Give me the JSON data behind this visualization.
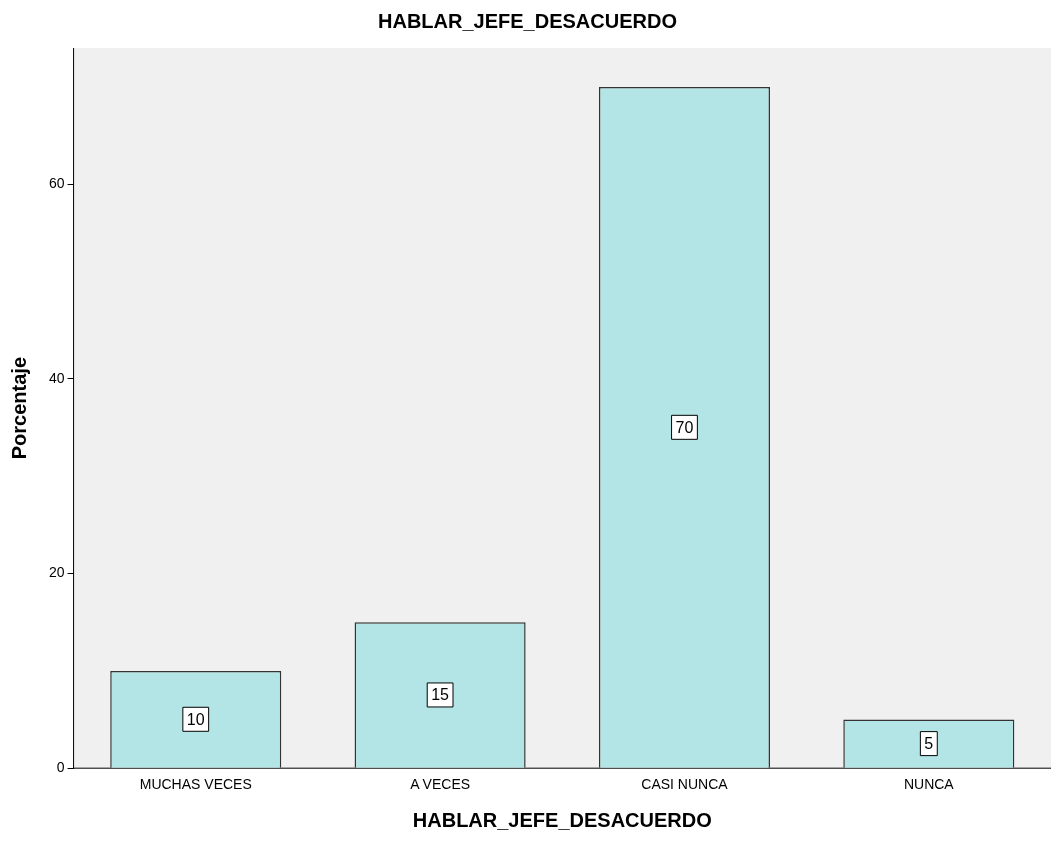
{
  "chart_data": {
    "type": "bar",
    "title": "HABLAR_JEFE_DESACUERDO",
    "xlabel": "HABLAR_JEFE_DESACUERDO",
    "ylabel": "Porcentaje",
    "categories": [
      "MUCHAS VECES",
      "A VECES",
      "CASI NUNCA",
      "NUNCA"
    ],
    "values": [
      10,
      15,
      70,
      5
    ],
    "color": "#b3e5e6",
    "ylim": [
      0,
      74
    ],
    "yticks": [
      0,
      20,
      40,
      60
    ],
    "grid": false,
    "legend": false,
    "data_labels": true
  }
}
